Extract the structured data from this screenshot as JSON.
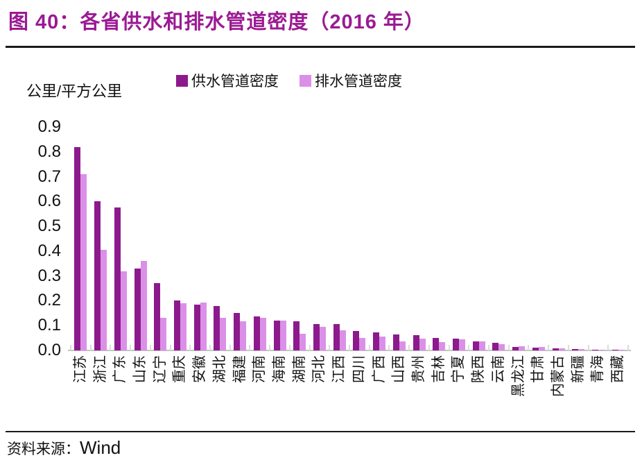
{
  "figure": {
    "title": "图 40：各省供水和排水管道密度（2016 年）",
    "source_label": "资料来源：",
    "source_value": "Wind"
  },
  "chart_data": {
    "type": "bar",
    "title": "各省供水和排水管道密度（2016 年）",
    "unit_label": "公里/平方公里",
    "legend_position": "top",
    "grid": false,
    "ylim": [
      0,
      0.9
    ],
    "y_ticks": [
      "0.9",
      "0.8",
      "0.7",
      "0.6",
      "0.5",
      "0.4",
      "0.3",
      "0.2",
      "0.1",
      "0.0"
    ],
    "categories": [
      "江苏",
      "浙江",
      "广东",
      "山东",
      "辽宁",
      "重庆",
      "安徽",
      "湖北",
      "福建",
      "河南",
      "海南",
      "湖南",
      "河北",
      "江西",
      "四川",
      "广西",
      "山西",
      "贵州",
      "吉林",
      "宁夏",
      "陕西",
      "云南",
      "黑龙江",
      "甘肃",
      "内蒙古",
      "新疆",
      "青海",
      "西藏"
    ],
    "series": [
      {
        "name": "供水管道密度",
        "color": "#8C1A8C",
        "values": [
          0.82,
          0.6,
          0.575,
          0.33,
          0.27,
          0.2,
          0.185,
          0.18,
          0.15,
          0.137,
          0.12,
          0.117,
          0.105,
          0.105,
          0.078,
          0.073,
          0.064,
          0.061,
          0.05,
          0.047,
          0.035,
          0.032,
          0.015,
          0.011,
          0.009,
          0.006,
          0.004,
          0.002
        ]
      },
      {
        "name": "排水管道密度",
        "color": "#DB90E8",
        "values": [
          0.71,
          0.405,
          0.32,
          0.36,
          0.13,
          0.19,
          0.193,
          0.13,
          0.117,
          0.13,
          0.12,
          0.067,
          0.096,
          0.081,
          0.05,
          0.056,
          0.036,
          0.048,
          0.034,
          0.045,
          0.036,
          0.025,
          0.016,
          0.015,
          0.009,
          0.006,
          0.004,
          0.001
        ]
      }
    ],
    "colors": {
      "title": "#9B1A93",
      "axis_line": "#C3C3C3",
      "tick_mark": "#DCDCDC",
      "text": "#111111"
    }
  }
}
